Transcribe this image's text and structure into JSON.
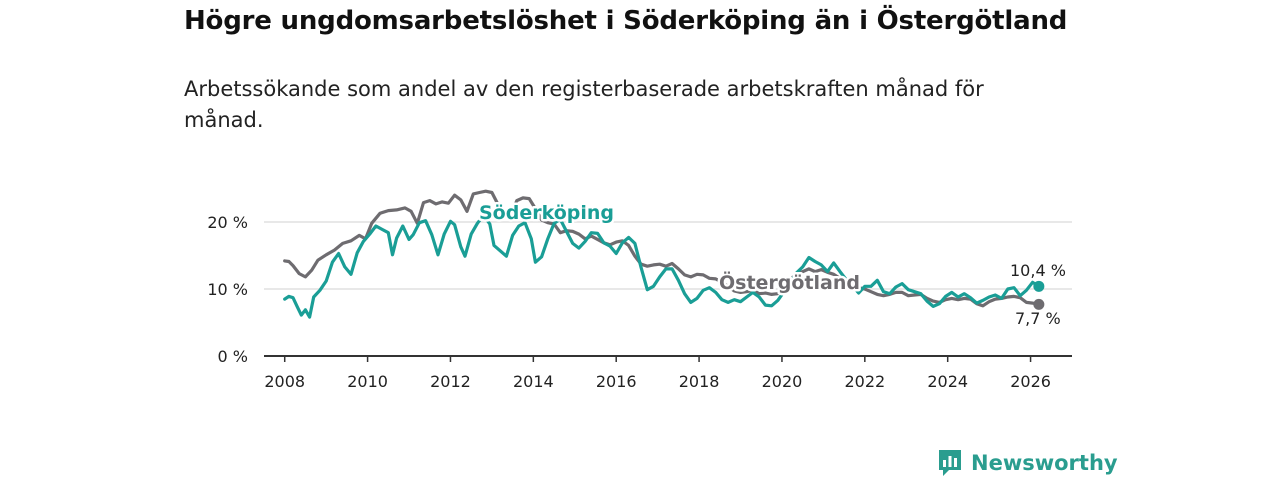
{
  "title": "Högre ungdomsarbetslöshet i Söderköping än i Östergötland",
  "subtitle": "Arbetssökande som andel av den registerbaserade arbetskraften månad för månad.",
  "brand": {
    "name": "Newsworthy",
    "icon": "newsworthy-logo-icon"
  },
  "colors": {
    "soderkoping": "#1a9e96",
    "ostergotland": "#6e6c70",
    "grid": "#d9d9d9",
    "axis": "#333333"
  },
  "chart_data": {
    "type": "line",
    "title": "Högre ungdomsarbetslöshet i Söderköping än i Östergötland",
    "xlabel": "",
    "ylabel": "",
    "xlim": [
      2007.5,
      2027.0
    ],
    "ylim": [
      0,
      20
    ],
    "grid": true,
    "x_ticks": [
      {
        "value": 2008,
        "label": "2008"
      },
      {
        "value": 2010,
        "label": "2010"
      },
      {
        "value": 2012,
        "label": "2012"
      },
      {
        "value": 2014,
        "label": "2014"
      },
      {
        "value": 2016,
        "label": "2016"
      },
      {
        "value": 2018,
        "label": "2018"
      },
      {
        "value": 2020,
        "label": "2020"
      },
      {
        "value": 2022,
        "label": "2022"
      },
      {
        "value": 2024,
        "label": "2024"
      },
      {
        "value": 2026,
        "label": "2026"
      }
    ],
    "y_ticks": [
      {
        "value": 0,
        "label": "0 %"
      },
      {
        "value": 10,
        "label": "10 %"
      },
      {
        "value": 20,
        "label": "20 %"
      }
    ],
    "series": [
      {
        "name": "Östergötland",
        "label": "Östergötland",
        "end_label": "7,7 %",
        "points": [
          [
            2008.0,
            14.2
          ],
          [
            2008.1,
            14.1
          ],
          [
            2008.2,
            13.5
          ],
          [
            2008.35,
            12.3
          ],
          [
            2008.5,
            11.8
          ],
          [
            2008.65,
            12.8
          ],
          [
            2008.8,
            14.3
          ],
          [
            2009.0,
            15.1
          ],
          [
            2009.2,
            15.8
          ],
          [
            2009.4,
            16.8
          ],
          [
            2009.6,
            17.2
          ],
          [
            2009.8,
            18.0
          ],
          [
            2009.95,
            17.5
          ],
          [
            2010.1,
            19.8
          ],
          [
            2010.3,
            21.3
          ],
          [
            2010.5,
            21.7
          ],
          [
            2010.7,
            21.8
          ],
          [
            2010.9,
            22.1
          ],
          [
            2011.05,
            21.6
          ],
          [
            2011.2,
            19.8
          ],
          [
            2011.35,
            22.9
          ],
          [
            2011.5,
            23.2
          ],
          [
            2011.65,
            22.7
          ],
          [
            2011.8,
            23.0
          ],
          [
            2011.95,
            22.8
          ],
          [
            2012.1,
            24.0
          ],
          [
            2012.25,
            23.3
          ],
          [
            2012.4,
            21.6
          ],
          [
            2012.55,
            24.2
          ],
          [
            2012.7,
            24.4
          ],
          [
            2012.85,
            24.6
          ],
          [
            2013.0,
            24.4
          ],
          [
            2013.15,
            22.6
          ],
          [
            2013.3,
            21.8
          ],
          [
            2013.45,
            20.8
          ],
          [
            2013.6,
            23.2
          ],
          [
            2013.75,
            23.6
          ],
          [
            2013.9,
            23.5
          ],
          [
            2014.05,
            22.0
          ],
          [
            2014.2,
            20.3
          ],
          [
            2014.35,
            19.9
          ],
          [
            2014.5,
            19.7
          ],
          [
            2014.65,
            18.4
          ],
          [
            2014.8,
            18.7
          ],
          [
            2014.95,
            18.6
          ],
          [
            2015.1,
            18.2
          ],
          [
            2015.25,
            17.5
          ],
          [
            2015.4,
            17.9
          ],
          [
            2015.55,
            17.4
          ],
          [
            2015.7,
            16.9
          ],
          [
            2015.85,
            16.6
          ],
          [
            2016.0,
            17.0
          ],
          [
            2016.15,
            17.2
          ],
          [
            2016.3,
            16.5
          ],
          [
            2016.45,
            14.9
          ],
          [
            2016.6,
            13.7
          ],
          [
            2016.75,
            13.4
          ],
          [
            2016.9,
            13.6
          ],
          [
            2017.05,
            13.7
          ],
          [
            2017.2,
            13.4
          ],
          [
            2017.35,
            13.8
          ],
          [
            2017.5,
            13.0
          ],
          [
            2017.65,
            12.1
          ],
          [
            2017.8,
            11.8
          ],
          [
            2017.95,
            12.2
          ],
          [
            2018.1,
            12.1
          ],
          [
            2018.25,
            11.6
          ],
          [
            2018.4,
            11.5
          ],
          [
            2018.55,
            11.0
          ],
          [
            2018.7,
            10.4
          ],
          [
            2018.85,
            9.7
          ],
          [
            2019.0,
            9.5
          ],
          [
            2019.15,
            9.6
          ],
          [
            2019.3,
            9.8
          ],
          [
            2019.45,
            9.3
          ],
          [
            2019.6,
            9.4
          ],
          [
            2019.75,
            9.2
          ],
          [
            2019.9,
            9.3
          ],
          [
            2020.05,
            10.2
          ],
          [
            2020.2,
            11.4
          ],
          [
            2020.35,
            12.3
          ],
          [
            2020.5,
            12.6
          ],
          [
            2020.65,
            13.0
          ],
          [
            2020.8,
            12.6
          ],
          [
            2020.95,
            12.9
          ],
          [
            2021.1,
            12.5
          ],
          [
            2021.25,
            12.2
          ],
          [
            2021.4,
            11.6
          ],
          [
            2021.55,
            11.1
          ],
          [
            2021.7,
            10.6
          ],
          [
            2021.85,
            10.2
          ],
          [
            2022.0,
            10.0
          ],
          [
            2022.15,
            9.6
          ],
          [
            2022.3,
            9.2
          ],
          [
            2022.45,
            9.0
          ],
          [
            2022.6,
            9.2
          ],
          [
            2022.75,
            9.5
          ],
          [
            2022.9,
            9.5
          ],
          [
            2023.05,
            9.0
          ],
          [
            2023.2,
            9.1
          ],
          [
            2023.35,
            9.2
          ],
          [
            2023.5,
            8.6
          ],
          [
            2023.65,
            8.2
          ],
          [
            2023.8,
            8.0
          ],
          [
            2023.95,
            8.4
          ],
          [
            2024.1,
            8.6
          ],
          [
            2024.25,
            8.4
          ],
          [
            2024.4,
            8.6
          ],
          [
            2024.55,
            8.5
          ],
          [
            2024.7,
            7.8
          ],
          [
            2024.85,
            7.5
          ],
          [
            2025.0,
            8.1
          ],
          [
            2025.15,
            8.5
          ],
          [
            2025.3,
            8.6
          ],
          [
            2025.45,
            8.8
          ],
          [
            2025.6,
            8.9
          ],
          [
            2025.75,
            8.7
          ],
          [
            2025.9,
            8.0
          ],
          [
            2026.05,
            7.9
          ],
          [
            2026.2,
            7.7
          ]
        ]
      },
      {
        "name": "Söderköping",
        "label": "Söderköping",
        "end_label": "10,4 %",
        "points": [
          [
            2008.0,
            8.5
          ],
          [
            2008.1,
            8.9
          ],
          [
            2008.2,
            8.7
          ],
          [
            2008.3,
            7.4
          ],
          [
            2008.4,
            6.1
          ],
          [
            2008.5,
            6.9
          ],
          [
            2008.6,
            5.8
          ],
          [
            2008.7,
            8.8
          ],
          [
            2008.85,
            9.8
          ],
          [
            2009.0,
            11.2
          ],
          [
            2009.15,
            14.0
          ],
          [
            2009.3,
            15.3
          ],
          [
            2009.45,
            13.3
          ],
          [
            2009.6,
            12.2
          ],
          [
            2009.75,
            15.4
          ],
          [
            2009.9,
            17.1
          ],
          [
            2010.05,
            18.2
          ],
          [
            2010.2,
            19.4
          ],
          [
            2010.35,
            18.9
          ],
          [
            2010.5,
            18.4
          ],
          [
            2010.6,
            15.1
          ],
          [
            2010.7,
            17.6
          ],
          [
            2010.85,
            19.4
          ],
          [
            2011.0,
            17.4
          ],
          [
            2011.1,
            18.1
          ],
          [
            2011.25,
            19.9
          ],
          [
            2011.4,
            20.2
          ],
          [
            2011.55,
            18.1
          ],
          [
            2011.7,
            15.1
          ],
          [
            2011.85,
            18.2
          ],
          [
            2012.0,
            20.1
          ],
          [
            2012.1,
            19.6
          ],
          [
            2012.25,
            16.3
          ],
          [
            2012.35,
            14.9
          ],
          [
            2012.5,
            18.2
          ],
          [
            2012.65,
            19.8
          ],
          [
            2012.8,
            21.0
          ],
          [
            2012.95,
            19.7
          ],
          [
            2013.05,
            16.5
          ],
          [
            2013.2,
            15.7
          ],
          [
            2013.35,
            14.9
          ],
          [
            2013.5,
            18.0
          ],
          [
            2013.65,
            19.4
          ],
          [
            2013.8,
            19.9
          ],
          [
            2013.95,
            17.5
          ],
          [
            2014.05,
            14.0
          ],
          [
            2014.2,
            14.8
          ],
          [
            2014.35,
            17.5
          ],
          [
            2014.5,
            19.8
          ],
          [
            2014.65,
            20.4
          ],
          [
            2014.8,
            18.6
          ],
          [
            2014.95,
            16.8
          ],
          [
            2015.1,
            16.1
          ],
          [
            2015.25,
            17.1
          ],
          [
            2015.4,
            18.4
          ],
          [
            2015.55,
            18.3
          ],
          [
            2015.7,
            16.9
          ],
          [
            2015.85,
            16.4
          ],
          [
            2016.0,
            15.3
          ],
          [
            2016.15,
            16.9
          ],
          [
            2016.3,
            17.7
          ],
          [
            2016.45,
            16.8
          ],
          [
            2016.6,
            13.2
          ],
          [
            2016.75,
            9.9
          ],
          [
            2016.9,
            10.4
          ],
          [
            2017.05,
            11.8
          ],
          [
            2017.2,
            13.0
          ],
          [
            2017.35,
            13.0
          ],
          [
            2017.5,
            11.3
          ],
          [
            2017.65,
            9.3
          ],
          [
            2017.8,
            8.0
          ],
          [
            2017.95,
            8.6
          ],
          [
            2018.1,
            9.8
          ],
          [
            2018.25,
            10.2
          ],
          [
            2018.4,
            9.5
          ],
          [
            2018.55,
            8.4
          ],
          [
            2018.7,
            8.0
          ],
          [
            2018.85,
            8.4
          ],
          [
            2019.0,
            8.1
          ],
          [
            2019.15,
            8.8
          ],
          [
            2019.3,
            9.5
          ],
          [
            2019.45,
            8.8
          ],
          [
            2019.6,
            7.6
          ],
          [
            2019.75,
            7.5
          ],
          [
            2019.9,
            8.3
          ],
          [
            2020.05,
            9.6
          ],
          [
            2020.2,
            11.0
          ],
          [
            2020.35,
            12.4
          ],
          [
            2020.5,
            13.3
          ],
          [
            2020.65,
            14.7
          ],
          [
            2020.8,
            14.1
          ],
          [
            2020.95,
            13.6
          ],
          [
            2021.1,
            12.6
          ],
          [
            2021.25,
            13.9
          ],
          [
            2021.4,
            12.6
          ],
          [
            2021.55,
            11.4
          ],
          [
            2021.7,
            10.5
          ],
          [
            2021.85,
            9.4
          ],
          [
            2022.0,
            10.4
          ],
          [
            2022.15,
            10.4
          ],
          [
            2022.3,
            11.3
          ],
          [
            2022.45,
            9.6
          ],
          [
            2022.6,
            9.3
          ],
          [
            2022.75,
            10.3
          ],
          [
            2022.9,
            10.8
          ],
          [
            2023.05,
            9.9
          ],
          [
            2023.2,
            9.6
          ],
          [
            2023.35,
            9.3
          ],
          [
            2023.5,
            8.2
          ],
          [
            2023.65,
            7.4
          ],
          [
            2023.8,
            7.8
          ],
          [
            2023.95,
            8.9
          ],
          [
            2024.1,
            9.5
          ],
          [
            2024.25,
            8.8
          ],
          [
            2024.4,
            9.3
          ],
          [
            2024.55,
            8.7
          ],
          [
            2024.7,
            7.9
          ],
          [
            2024.85,
            8.3
          ],
          [
            2025.0,
            8.8
          ],
          [
            2025.15,
            9.1
          ],
          [
            2025.3,
            8.6
          ],
          [
            2025.45,
            10.0
          ],
          [
            2025.6,
            10.2
          ],
          [
            2025.75,
            9.0
          ],
          [
            2025.9,
            9.8
          ],
          [
            2026.05,
            11.0
          ],
          [
            2026.2,
            10.4
          ]
        ]
      }
    ]
  }
}
